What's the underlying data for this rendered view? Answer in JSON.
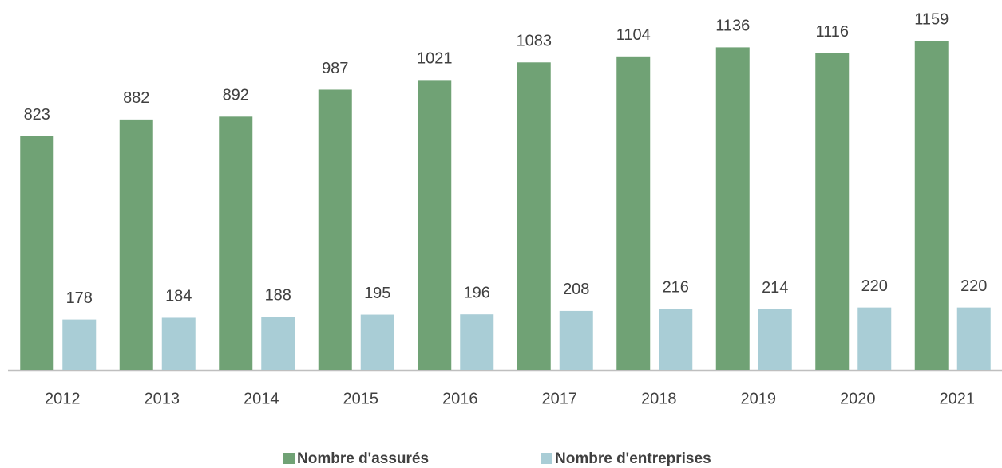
{
  "chart_data": {
    "type": "bar",
    "categories": [
      "2012",
      "2013",
      "2014",
      "2015",
      "2016",
      "2017",
      "2018",
      "2019",
      "2020",
      "2021"
    ],
    "series": [
      {
        "name": "Nombre d'assurés",
        "color": "#70a275",
        "values": [
          823,
          882,
          892,
          987,
          1021,
          1083,
          1104,
          1136,
          1116,
          1159
        ]
      },
      {
        "name": "Nombre d'entreprises",
        "color": "#a9cdd6",
        "values": [
          178,
          184,
          188,
          195,
          196,
          208,
          216,
          214,
          220,
          220
        ]
      }
    ],
    "ylim": [
      0,
      1300
    ],
    "legend": "bottom"
  }
}
